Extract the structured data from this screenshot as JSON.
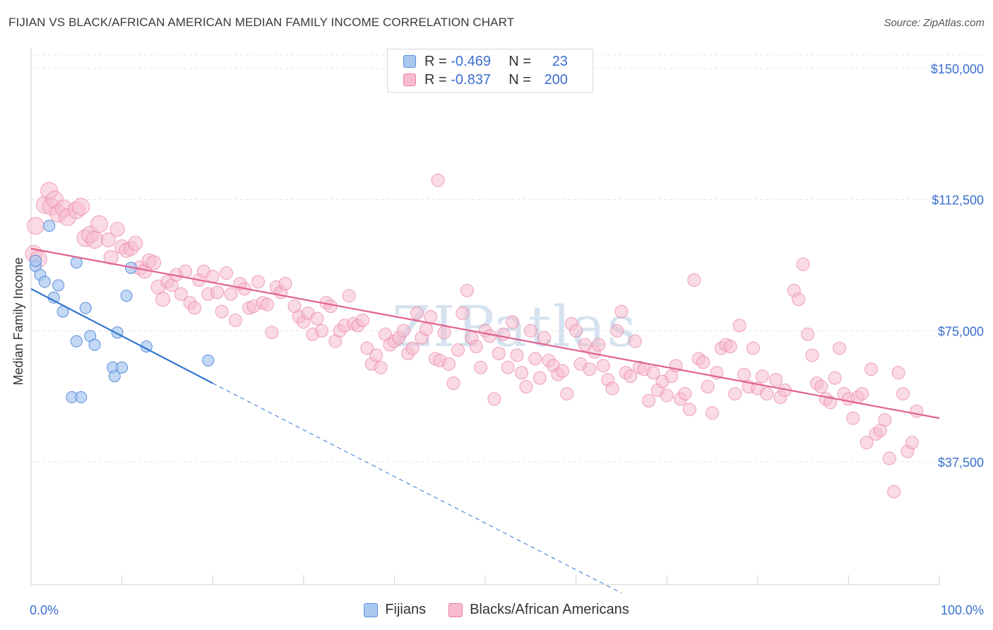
{
  "title": "FIJIAN VS BLACK/AFRICAN AMERICAN MEDIAN FAMILY INCOME CORRELATION CHART",
  "source": "Source: ZipAtlas.com",
  "watermark": "ZIPatlas",
  "legend": {
    "fijians": {
      "r_label": "R =",
      "r_value": "-0.469",
      "n_label": "N =",
      "n_value": "23"
    },
    "black": {
      "r_label": "R =",
      "r_value": "-0.837",
      "n_label": "N =",
      "n_value": "200"
    }
  },
  "colors": {
    "fijians": "#5b8fdc",
    "fijians_fill": "#aac7f0",
    "fijians_line": "#2f74d0",
    "black": "#e87fa3",
    "black_fill": "#f6bccd",
    "black_line": "#e0628f",
    "axis_text": "#3a6fcf"
  },
  "chart_data": {
    "type": "scatter",
    "title": "FIJIAN VS BLACK/AFRICAN AMERICAN MEDIAN FAMILY INCOME CORRELATION CHART",
    "xlabel": "",
    "ylabel": "Median Family Income",
    "xlim": [
      0,
      100
    ],
    "ylim": [
      0,
      155000
    ],
    "x_tick_labels": [
      "0.0%",
      "100.0%"
    ],
    "y_ticks": [
      37500,
      75000,
      112500,
      150000
    ],
    "y_tick_labels": [
      "$37,500",
      "$75,000",
      "$112,500",
      "$150,000"
    ],
    "grid": true,
    "legend_position": "bottom-center",
    "series": [
      {
        "name": "Fijians",
        "points": [
          [
            0.5,
            93500
          ],
          [
            0.5,
            95000
          ],
          [
            1,
            91000
          ],
          [
            1.5,
            89000
          ],
          [
            2,
            105000
          ],
          [
            2.5,
            84500
          ],
          [
            3,
            88000
          ],
          [
            3.5,
            80500
          ],
          [
            4.5,
            56000
          ],
          [
            5,
            94500
          ],
          [
            5,
            72000
          ],
          [
            5.5,
            56000
          ],
          [
            6,
            81500
          ],
          [
            6.5,
            73500
          ],
          [
            7,
            71000
          ],
          [
            9,
            64500
          ],
          [
            9.2,
            62000
          ],
          [
            9.5,
            74500
          ],
          [
            10,
            64500
          ],
          [
            10.5,
            85000
          ],
          [
            11,
            93000
          ],
          [
            12.7,
            70500
          ],
          [
            19.5,
            66500
          ]
        ],
        "trend": {
          "x": [
            0,
            20
          ],
          "y": [
            87000,
            60000
          ]
        },
        "trend_extension": {
          "x": [
            20,
            65
          ],
          "y": [
            60000,
            0
          ]
        }
      },
      {
        "name": "Blacks/African Americans",
        "points": [
          [
            0.3,
            97000
          ],
          [
            0.5,
            105000
          ],
          [
            0.8,
            95500
          ],
          [
            1.5,
            111000
          ],
          [
            2,
            115000
          ],
          [
            2.2,
            110500
          ],
          [
            2.6,
            112500
          ],
          [
            3,
            108500
          ],
          [
            3.6,
            110000
          ],
          [
            4,
            107500
          ],
          [
            5,
            109500
          ],
          [
            5.5,
            110500
          ],
          [
            6,
            101500
          ],
          [
            6.5,
            102500
          ],
          [
            7,
            101000
          ],
          [
            7.5,
            105500
          ],
          [
            8.5,
            101000
          ],
          [
            8.8,
            96000
          ],
          [
            9.5,
            104000
          ],
          [
            10,
            99000
          ],
          [
            10.5,
            98000
          ],
          [
            11,
            98500
          ],
          [
            11.5,
            100000
          ],
          [
            12,
            93000
          ],
          [
            12.5,
            92000
          ],
          [
            13,
            95000
          ],
          [
            13.5,
            94500
          ],
          [
            14,
            87500
          ],
          [
            14.5,
            84000
          ],
          [
            15,
            89000
          ],
          [
            15.5,
            88000
          ],
          [
            16,
            91000
          ],
          [
            16.5,
            85500
          ],
          [
            17,
            92000
          ],
          [
            17.5,
            83000
          ],
          [
            18,
            81500
          ],
          [
            18.5,
            89500
          ],
          [
            19,
            92000
          ],
          [
            19.5,
            85500
          ],
          [
            20,
            90500
          ],
          [
            20.5,
            86000
          ],
          [
            21,
            80500
          ],
          [
            21.5,
            91500
          ],
          [
            22,
            85500
          ],
          [
            22.5,
            78000
          ],
          [
            23,
            88500
          ],
          [
            23.5,
            87000
          ],
          [
            24,
            81500
          ],
          [
            24.5,
            82000
          ],
          [
            25,
            89000
          ],
          [
            25.5,
            83000
          ],
          [
            26,
            82500
          ],
          [
            26.5,
            74500
          ],
          [
            27,
            87500
          ],
          [
            27.5,
            86000
          ],
          [
            28,
            88500
          ],
          [
            29,
            82000
          ],
          [
            29.5,
            79000
          ],
          [
            30,
            77500
          ],
          [
            30.5,
            80000
          ],
          [
            31,
            74000
          ],
          [
            31.5,
            78500
          ],
          [
            32,
            75000
          ],
          [
            32.5,
            83000
          ],
          [
            33,
            82000
          ],
          [
            33.5,
            72000
          ],
          [
            34,
            75000
          ],
          [
            34.5,
            76500
          ],
          [
            35,
            85000
          ],
          [
            35.5,
            77000
          ],
          [
            36,
            76500
          ],
          [
            36.5,
            78000
          ],
          [
            37,
            70000
          ],
          [
            37.5,
            65500
          ],
          [
            38,
            68000
          ],
          [
            38.5,
            64500
          ],
          [
            39,
            74000
          ],
          [
            39.5,
            71000
          ],
          [
            40,
            72000
          ],
          [
            40.5,
            73000
          ],
          [
            41,
            75000
          ],
          [
            41.5,
            68500
          ],
          [
            42,
            70000
          ],
          [
            42.5,
            80000
          ],
          [
            43,
            73000
          ],
          [
            43.5,
            75500
          ],
          [
            44,
            79000
          ],
          [
            44.5,
            67000
          ],
          [
            44.8,
            118000
          ],
          [
            45,
            66500
          ],
          [
            45.5,
            74500
          ],
          [
            46,
            65500
          ],
          [
            46.5,
            60000
          ],
          [
            47,
            69500
          ],
          [
            47.5,
            80000
          ],
          [
            48,
            86500
          ],
          [
            48.5,
            73000
          ],
          [
            49,
            70500
          ],
          [
            49.5,
            64500
          ],
          [
            50,
            75000
          ],
          [
            50.5,
            73500
          ],
          [
            51,
            55500
          ],
          [
            51.5,
            68500
          ],
          [
            52,
            74000
          ],
          [
            52.5,
            64500
          ],
          [
            53,
            77500
          ],
          [
            53.5,
            68000
          ],
          [
            54,
            63000
          ],
          [
            54.5,
            59000
          ],
          [
            55,
            75000
          ],
          [
            55.5,
            67000
          ],
          [
            56,
            61500
          ],
          [
            56.5,
            73000
          ],
          [
            57,
            66500
          ],
          [
            57.5,
            65000
          ],
          [
            58,
            62500
          ],
          [
            58.5,
            63500
          ],
          [
            59,
            57000
          ],
          [
            59.5,
            77000
          ],
          [
            60,
            75000
          ],
          [
            60.5,
            65500
          ],
          [
            61,
            71000
          ],
          [
            61.5,
            64000
          ],
          [
            62,
            69000
          ],
          [
            62.5,
            71000
          ],
          [
            63,
            65000
          ],
          [
            63.5,
            61000
          ],
          [
            64,
            58500
          ],
          [
            64.5,
            75000
          ],
          [
            65,
            80500
          ],
          [
            65.5,
            63000
          ],
          [
            66,
            62000
          ],
          [
            66.5,
            72000
          ],
          [
            67,
            64500
          ],
          [
            67.5,
            64000
          ],
          [
            68,
            55000
          ],
          [
            68.5,
            63000
          ],
          [
            69,
            58000
          ],
          [
            69.5,
            60500
          ],
          [
            70,
            56500
          ],
          [
            70.5,
            62000
          ],
          [
            71,
            65000
          ],
          [
            71.5,
            55500
          ],
          [
            72,
            57000
          ],
          [
            72.5,
            52500
          ],
          [
            73,
            89500
          ],
          [
            73.5,
            67000
          ],
          [
            74,
            66000
          ],
          [
            74.5,
            59000
          ],
          [
            75,
            51500
          ],
          [
            75.5,
            63000
          ],
          [
            76,
            70000
          ],
          [
            76.5,
            71000
          ],
          [
            77,
            70500
          ],
          [
            77.5,
            57000
          ],
          [
            78,
            76500
          ],
          [
            78.5,
            62500
          ],
          [
            79,
            59000
          ],
          [
            79.5,
            70000
          ],
          [
            80,
            58500
          ],
          [
            80.5,
            62000
          ],
          [
            81,
            57000
          ],
          [
            82,
            61000
          ],
          [
            82.5,
            56000
          ],
          [
            83,
            58000
          ],
          [
            84,
            86500
          ],
          [
            84.5,
            84000
          ],
          [
            85,
            94000
          ],
          [
            85.5,
            74000
          ],
          [
            86,
            68000
          ],
          [
            86.5,
            60000
          ],
          [
            87,
            59000
          ],
          [
            87.5,
            55500
          ],
          [
            88,
            54500
          ],
          [
            88.5,
            61500
          ],
          [
            89,
            70000
          ],
          [
            89.5,
            57000
          ],
          [
            90,
            55500
          ],
          [
            90.5,
            50000
          ],
          [
            91,
            56000
          ],
          [
            91.5,
            57000
          ],
          [
            92,
            43000
          ],
          [
            92.5,
            64000
          ],
          [
            93,
            45500
          ],
          [
            93.5,
            46500
          ],
          [
            94,
            49500
          ],
          [
            94.5,
            38500
          ],
          [
            95,
            29000
          ],
          [
            95.5,
            63000
          ],
          [
            96,
            57000
          ],
          [
            96.5,
            40500
          ],
          [
            97,
            43000
          ],
          [
            97.5,
            52000
          ]
        ],
        "trend": {
          "x": [
            0,
            100
          ],
          "y": [
            98500,
            50000
          ]
        }
      }
    ]
  }
}
